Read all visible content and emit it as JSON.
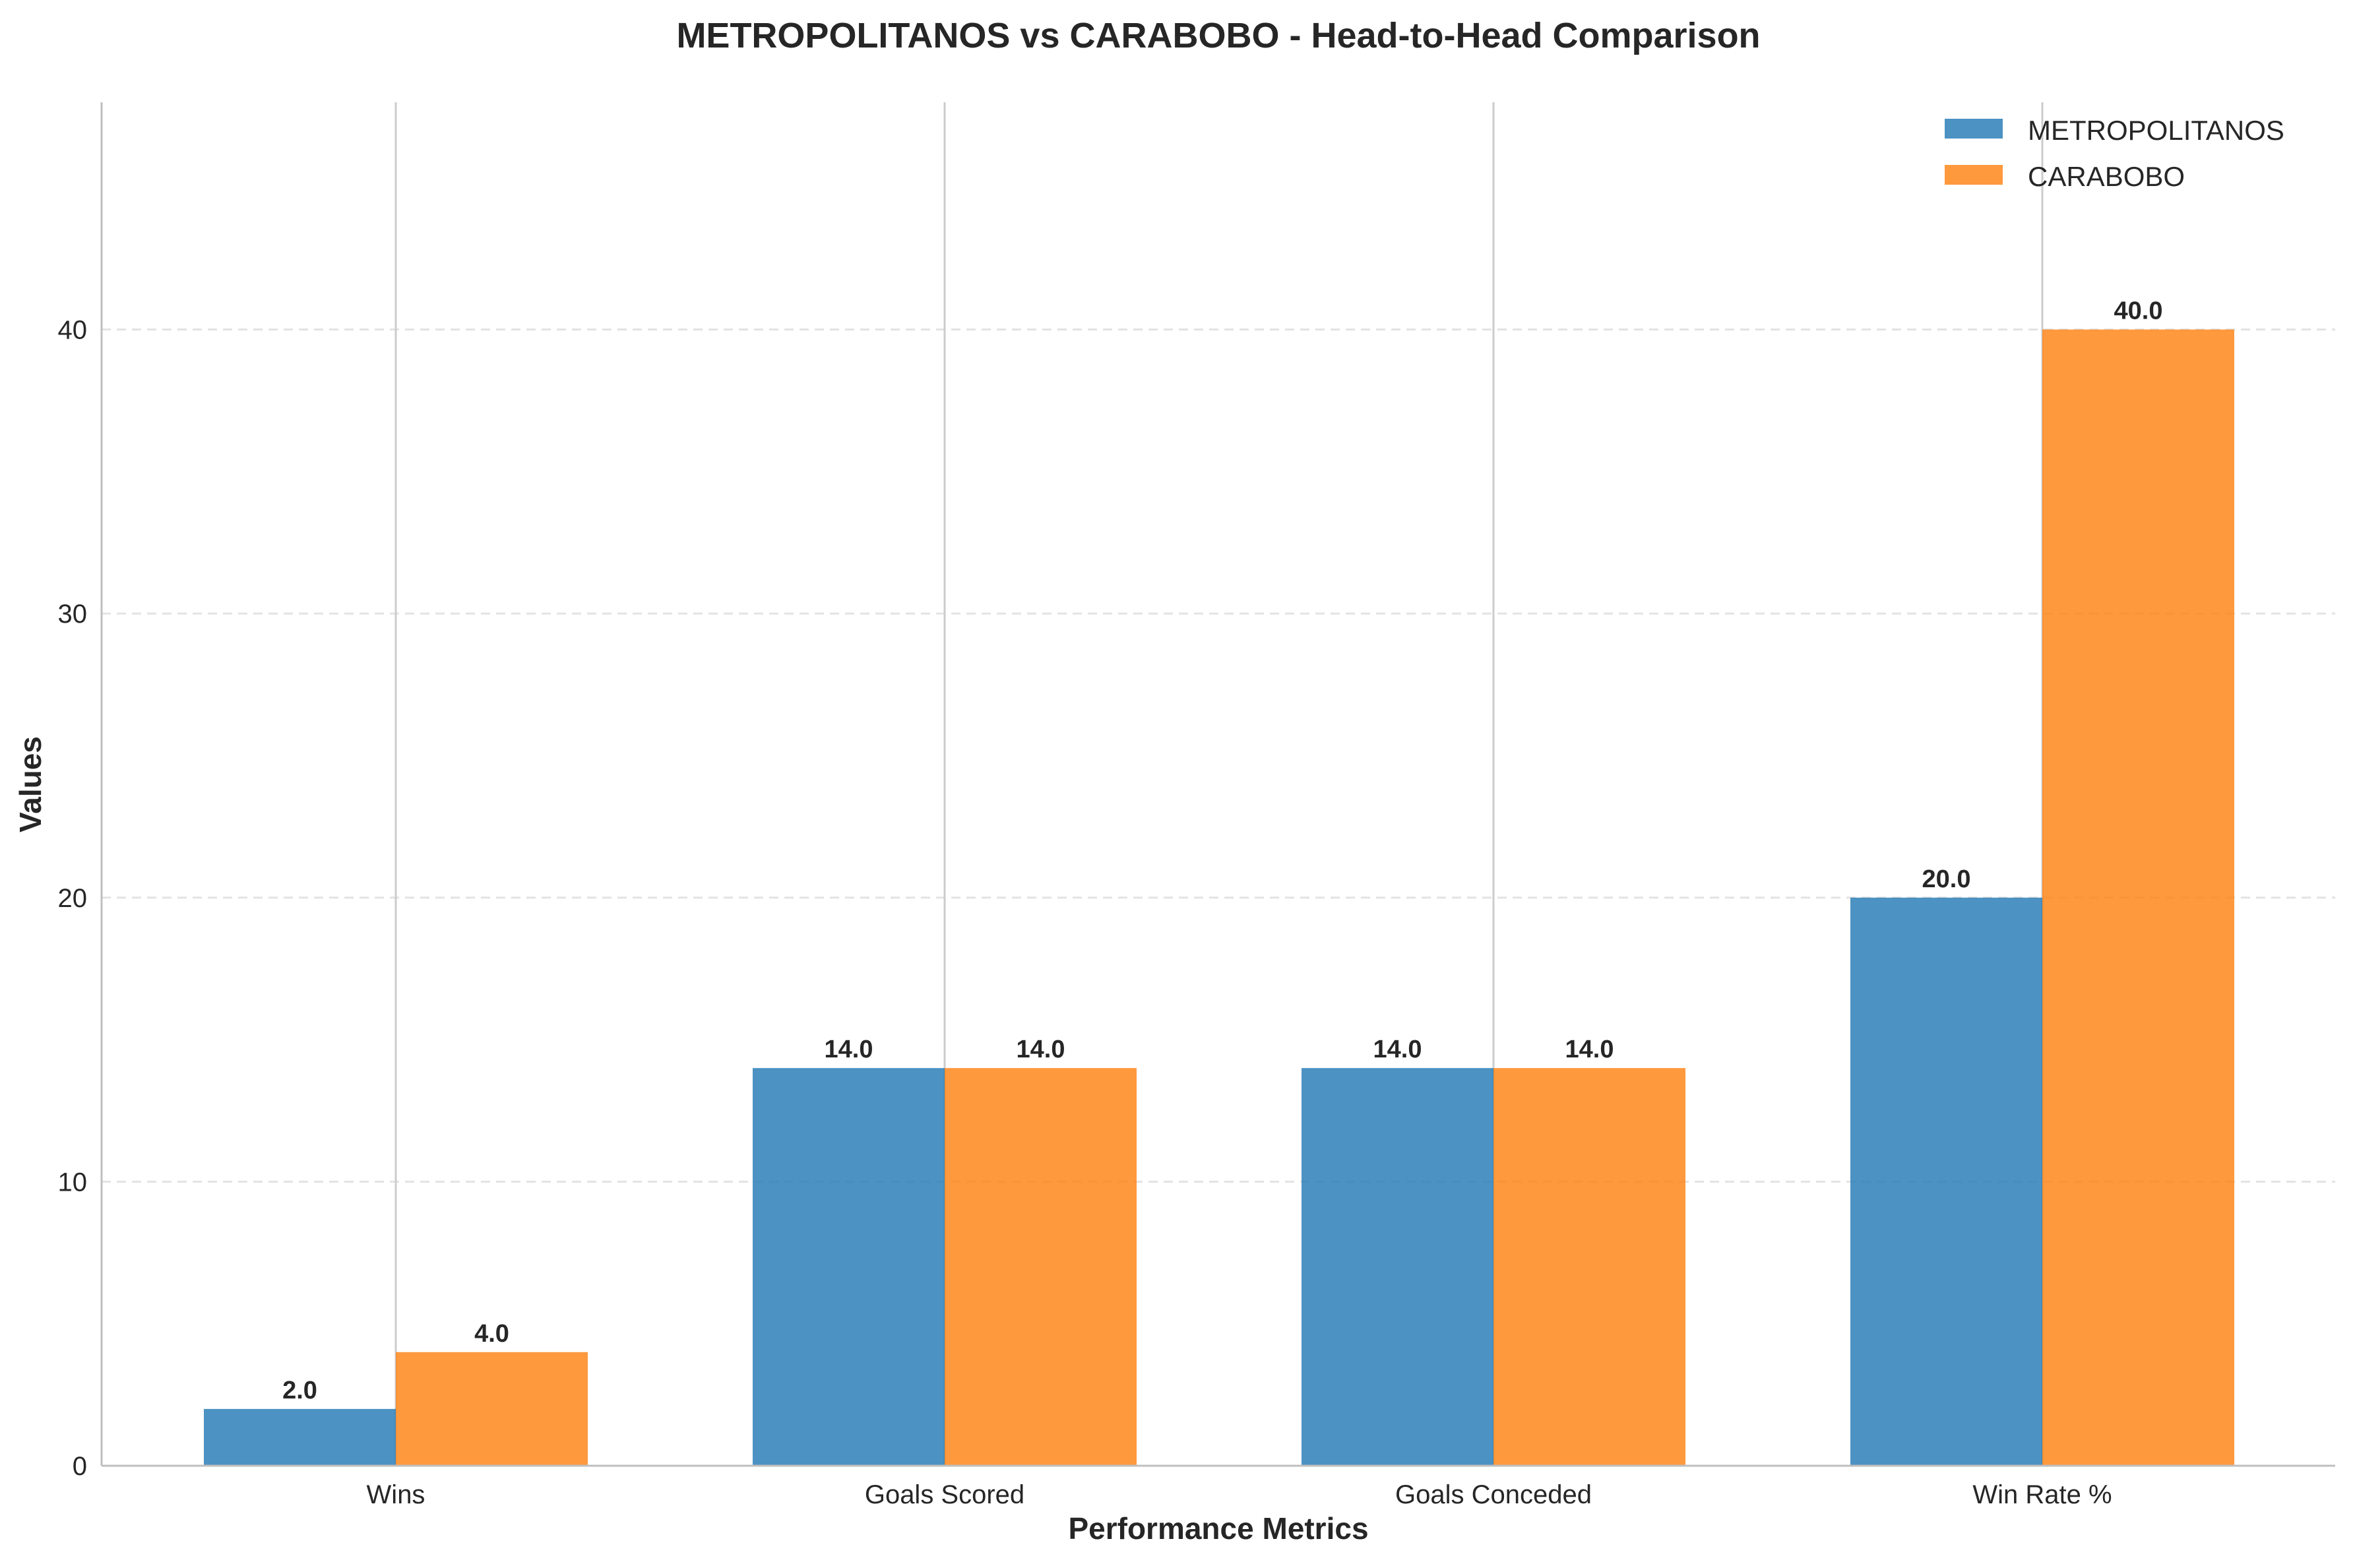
{
  "chart_data": {
    "type": "bar",
    "title": "METROPOLITANOS vs CARABOBO - Head-to-Head Comparison",
    "xlabel": "Performance Metrics",
    "ylabel": "Values",
    "categories": [
      "Wins",
      "Goals Scored",
      "Goals Conceded",
      "Win Rate %"
    ],
    "series": [
      {
        "name": "METROPOLITANOS",
        "values": [
          2,
          14,
          14,
          20
        ],
        "color": "#1f77b4",
        "labels": [
          "2.0",
          "14.0",
          "14.0",
          "20.0"
        ]
      },
      {
        "name": "CARABOBO",
        "values": [
          4,
          14,
          14,
          40
        ],
        "color": "#ff7f0e",
        "labels": [
          "4.0",
          "14.0",
          "14.0",
          "40.0"
        ]
      }
    ],
    "ylim": [
      0,
      48
    ],
    "yticks": [
      0,
      10,
      20,
      30,
      40
    ],
    "ytick_labels": [
      "0",
      "10",
      "20",
      "30",
      "40"
    ],
    "grid": "y dashed",
    "legend": "top-right"
  }
}
